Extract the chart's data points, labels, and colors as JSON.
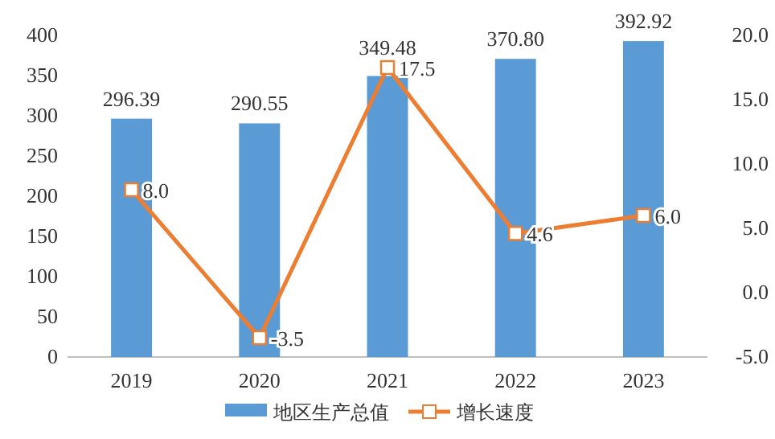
{
  "chart_data": {
    "type": "bar",
    "categories": [
      "2019",
      "2020",
      "2021",
      "2022",
      "2023"
    ],
    "series": [
      {
        "name": "地区生产总值",
        "color": "#5b9bd5",
        "values": [
          296.39,
          290.55,
          349.48,
          370.8,
          392.92
        ],
        "value_labels": [
          "296.39",
          "290.55",
          "349.48",
          "370.80",
          "392.92"
        ]
      },
      {
        "name": "增长速度",
        "type": "line",
        "axis": "y2",
        "color": "#ed7d31",
        "values": [
          8.0,
          -3.5,
          17.5,
          4.6,
          6.0
        ],
        "value_labels": [
          "8.0",
          "-3.5",
          "17.5",
          "4.6",
          "6.0"
        ]
      }
    ],
    "ylim": [
      0,
      400
    ],
    "yticks": [
      0,
      50,
      100,
      150,
      200,
      250,
      300,
      350,
      400
    ],
    "y2lim": [
      -5,
      20
    ],
    "y2ticks": [
      {
        "value": -5,
        "label": "-5.0"
      },
      {
        "value": 0,
        "label": "0.0"
      },
      {
        "value": 5,
        "label": "5.0"
      },
      {
        "value": 10,
        "label": "10.0"
      },
      {
        "value": 15,
        "label": "15.0"
      },
      {
        "value": 20,
        "label": "20.0"
      }
    ],
    "marker": "square",
    "line_style": "solid",
    "legend": "bottom",
    "grid": false
  }
}
